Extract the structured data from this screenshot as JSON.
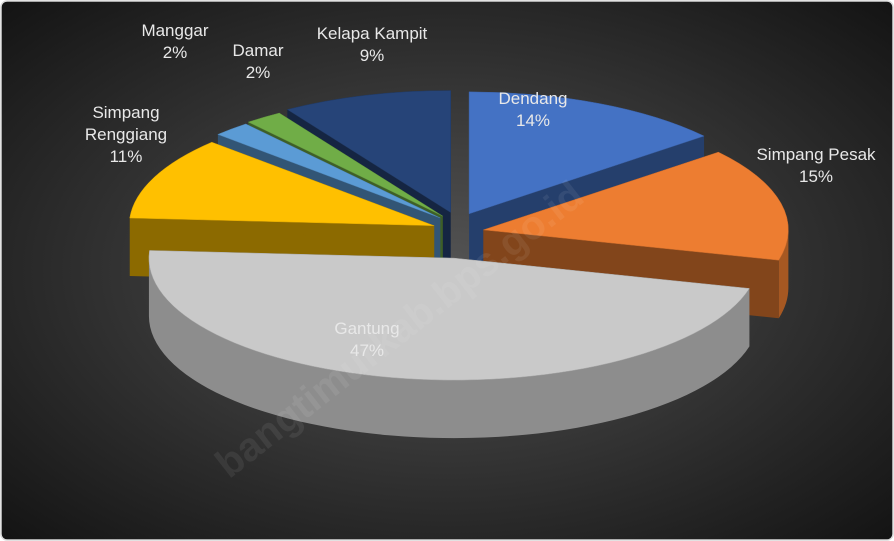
{
  "chart_data": {
    "type": "pie3d",
    "categories": [
      "Dendang",
      "Simpang Pesak",
      "Gantung",
      "Simpang Renggiang",
      "Manggar",
      "Damar",
      "Kelapa Kampit"
    ],
    "values": [
      14,
      15,
      47,
      11,
      2,
      2,
      9
    ],
    "value_labels": [
      "14%",
      "15%",
      "47%",
      "11%",
      "2%",
      "2%",
      "9%"
    ],
    "colors": [
      "#4472c4",
      "#ed7d31",
      "#c9c9c9",
      "#ffc000",
      "#5b9bd5",
      "#70ad47",
      "#264478"
    ],
    "watermark": "bangtimurkab.bps.go.id"
  }
}
